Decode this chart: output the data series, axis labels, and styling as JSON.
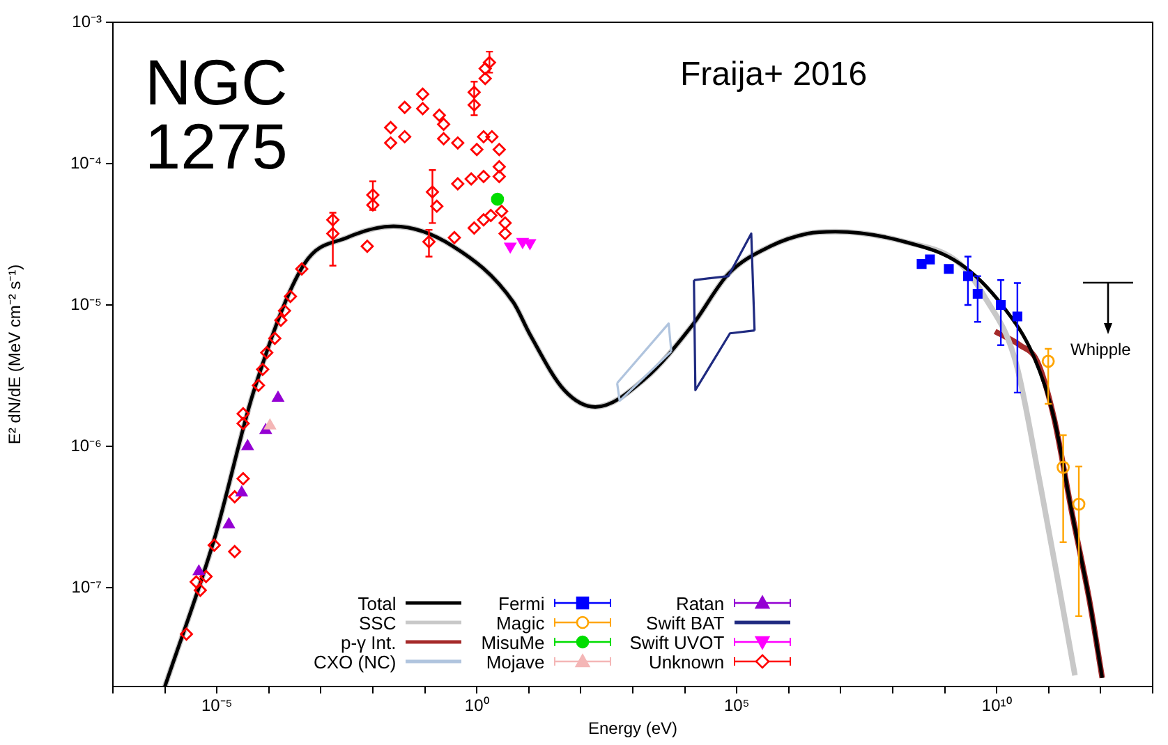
{
  "chart_data": {
    "type": "line",
    "xlabel": "Energy (eV)",
    "ylabel": "E² dN/dE (MeV cm⁻² s⁻¹)",
    "log": "xy",
    "grid": false,
    "legend": "bottom",
    "xlim": [
      1e-07,
      10000000000000.0
    ],
    "ylim": [
      2e-08,
      0.001
    ],
    "xticks": [
      {
        "value": 1e-07,
        "label": null
      },
      {
        "value": 1e-06,
        "label": null
      },
      {
        "value": 1e-05,
        "label": "10⁻⁵"
      },
      {
        "value": 0.0001,
        "label": null
      },
      {
        "value": 0.001,
        "label": null
      },
      {
        "value": 0.01,
        "label": null
      },
      {
        "value": 0.1,
        "label": null
      },
      {
        "value": 1,
        "label": "10⁰"
      },
      {
        "value": 10,
        "label": null
      },
      {
        "value": 100,
        "label": null
      },
      {
        "value": 1000,
        "label": null
      },
      {
        "value": 10000.0,
        "label": null
      },
      {
        "value": 100000.0,
        "label": "10⁵"
      },
      {
        "value": 1000000.0,
        "label": null
      },
      {
        "value": 10000000.0,
        "label": null
      },
      {
        "value": 100000000.0,
        "label": null
      },
      {
        "value": 1000000000.0,
        "label": null
      },
      {
        "value": 10000000000.0,
        "label": "10¹⁰"
      },
      {
        "value": 100000000000.0,
        "label": null
      },
      {
        "value": 1000000000000.0,
        "label": null
      },
      {
        "value": 10000000000000.0,
        "label": null
      }
    ],
    "yticks": [
      {
        "value": 1e-07,
        "label": "10⁻⁷"
      },
      {
        "value": 1e-06,
        "label": "10⁻⁶"
      },
      {
        "value": 1e-05,
        "label": "10⁻⁵"
      },
      {
        "value": 0.0001,
        "label": "10⁻⁴"
      },
      {
        "value": 0.001,
        "label": "10⁻³"
      }
    ],
    "annotations": [
      "NGC 1275",
      "Fraija+ 2016",
      "Whipple"
    ],
    "series": [
      {
        "name": "Total",
        "type": "line",
        "color": "#000000",
        "marker": "none",
        "x": [
          1e-06,
          8.9e-06,
          5.2e-05,
          0.00048,
          0.0032,
          0.025,
          0.35,
          5.0,
          10.5,
          48,
          190,
          1700,
          14000.0,
          69000.0,
          440000.0,
          2300000.0,
          7900000.0,
          170000000.0,
          2000000000.0,
          12600000000.0,
          52000000000.0,
          126000000000.0,
          275000000000.0,
          620000000000.0,
          1070000000000.0
        ],
        "values": [
          2e-08,
          2.2e-07,
          2.5e-06,
          1.95e-05,
          3e-05,
          3.6e-05,
          2.6e-05,
          1.05e-05,
          6.2e-06,
          2.5e-06,
          1.9e-06,
          3e-06,
          7.2e-06,
          1.66e-05,
          2.6e-05,
          3.2e-05,
          3.3e-05,
          2.8e-05,
          1.95e-05,
          1e-05,
          4.3e-06,
          1.6e-06,
          3.5e-07,
          7.8e-08,
          2.3e-08
        ]
      },
      {
        "name": "SSC",
        "type": "line",
        "color": "#c8c8c8",
        "marker": "none",
        "x": [
          1e-06,
          8.9e-06,
          5.2e-05,
          0.00048,
          0.0032,
          0.025,
          0.35,
          5.0,
          10.5,
          48,
          190,
          1700,
          14000.0,
          69000.0,
          440000.0,
          2300000.0,
          7900000.0,
          170000000.0,
          2000000000.0,
          5800000000.0,
          23000000000.0,
          68000000000.0,
          180000000000.0,
          320000000000.0
        ],
        "values": [
          2e-08,
          2.2e-07,
          2.5e-06,
          1.95e-05,
          3e-05,
          3.6e-05,
          2.6e-05,
          1.05e-05,
          6.2e-06,
          2.5e-06,
          1.9e-06,
          3e-06,
          7.2e-06,
          1.66e-05,
          2.6e-05,
          3.2e-05,
          3.3e-05,
          2.8e-05,
          1.95e-05,
          1.15e-05,
          4e-06,
          5.5e-07,
          7.8e-08,
          2.4e-08
        ]
      },
      {
        "name": "p-γ Int.",
        "type": "line",
        "color": "#a52a2a",
        "marker": "none",
        "x": [
          9300000000.0,
          28000000000.0,
          60000000000.0,
          126000000000.0,
          275000000000.0,
          620000000000.0,
          1070000000000.0
        ],
        "values": [
          6.5e-06,
          5.2e-06,
          4e-06,
          1.6e-06,
          3.5e-07,
          7.8e-08,
          2.3e-08
        ]
      },
      {
        "name": "CXO (NC)",
        "type": "line",
        "color": "#b0c4de",
        "marker": "none",
        "x": [
          500,
          4900,
          5500
        ],
        "values": [
          2.8e-06,
          7.4e-06,
          4.7e-06
        ]
      },
      {
        "type": "line",
        "color": "#b0c4de",
        "marker": "none",
        "x": [
          500,
          560,
          5500
        ],
        "values": [
          2.8e-06,
          2.1e-06,
          4.7e-06
        ]
      },
      {
        "name": "Fermi",
        "type": "scatter",
        "color": "#0000ff",
        "marker": "square",
        "x": [
          360000000.0,
          520000000.0,
          1200000000.0,
          2800000000.0,
          4300000000.0,
          12000000000.0,
          25000000000.0
        ],
        "values": [
          1.95e-05,
          2.1e-05,
          1.8e-05,
          1.6e-05,
          1.2e-05,
          1e-05,
          8.3e-06
        ],
        "errors": [
          null,
          null,
          null,
          [
            1e-05,
            2.2e-05
          ],
          [
            7.6e-06,
            1.6e-05
          ],
          [
            5.2e-06,
            1.5e-05
          ],
          [
            2.4e-06,
            1.43e-05
          ]
        ]
      },
      {
        "name": "Magic",
        "type": "scatter",
        "color": "#ffa500",
        "marker": "circle-open",
        "x": [
          98000000000.0,
          190000000000.0,
          380000000000.0
        ],
        "values": [
          4e-06,
          7.1e-07,
          3.9e-07
        ],
        "errors": [
          [
            2e-06,
            4.9e-06
          ],
          [
            2.1e-07,
            1.2e-06
          ],
          [
            6.3e-08,
            7.2e-07
          ]
        ]
      },
      {
        "name": "MisuMe",
        "type": "scatter",
        "color": "#00dd00",
        "marker": "circle",
        "x": [
          2.5
        ],
        "values": [
          5.6e-05
        ]
      },
      {
        "name": "Mojave",
        "type": "scatter",
        "color": "#f4b6b6",
        "marker": "triangle",
        "x": [
          0.000105
        ],
        "values": [
          1.4e-06
        ]
      },
      {
        "name": "Ratan",
        "type": "scatter",
        "color": "#9400d3",
        "marker": "triangle",
        "x": [
          0.00015,
          8.7e-05,
          3.9e-05,
          3e-05,
          1.7e-05,
          4.5e-06
        ],
        "values": [
          2.2e-06,
          1.3e-06,
          1e-06,
          4.7e-07,
          2.8e-07,
          1.3e-07
        ]
      },
      {
        "name": "Swift BAT",
        "type": "line",
        "color": "#1f2a80",
        "marker": "none",
        "x": [
          15000.0,
          69000.0,
          190000.0,
          220000.0
        ],
        "values": [
          1.5e-05,
          1.6e-05,
          3.2e-05,
          6.6e-06
        ]
      },
      {
        "type": "line",
        "color": "#1f2a80",
        "marker": "none",
        "x": [
          15000.0,
          16000.0,
          74000.0,
          220000.0
        ],
        "values": [
          1.5e-05,
          2.5e-06,
          6.3e-06,
          6.6e-06
        ]
      },
      {
        "name": "Swift UVOT",
        "type": "scatter",
        "color": "#ff00ff",
        "marker": "triangle-down",
        "x": [
          4.4,
          7.6,
          10.5
        ],
        "values": [
          2.6e-05,
          2.8e-05,
          2.75e-05
        ]
      },
      {
        "name": "Unknown",
        "type": "scatter",
        "color": "#ff0000",
        "marker": "diamond-open",
        "x": [
          2.6e-06,
          4e-06,
          4.8e-06,
          6.2e-06,
          8.9e-06,
          2.2e-05,
          2.2e-05,
          3.2e-05,
          3.2e-05,
          3.2e-05,
          6.3e-05,
          7.6e-05,
          9.1e-05,
          0.00013,
          0.00017,
          0.0002,
          0.00026,
          0.00043,
          0.0017,
          0.0017,
          0.0078,
          0.01,
          0.01,
          0.022,
          0.022,
          0.041,
          0.041,
          0.091,
          0.091,
          0.19,
          0.23,
          0.23,
          0.43,
          0.89,
          0.89,
          1.45,
          1.45,
          1.75,
          1.0,
          1.35,
          1.95,
          2.7,
          2.7,
          2.7,
          1.35,
          0.78,
          0.43,
          0.14,
          0.17,
          0.12,
          0.37,
          0.89,
          1.35,
          1.86,
          3.0,
          3.5,
          3.5
        ],
        "values": [
          4.7e-08,
          1.1e-07,
          9.6e-08,
          1.2e-07,
          2e-07,
          1.8e-07,
          4.4e-07,
          5.9e-07,
          1.45e-06,
          1.7e-06,
          2.7e-06,
          3.5e-06,
          4.6e-06,
          5.8e-06,
          7.8e-06,
          9.1e-06,
          1.15e-05,
          1.8e-05,
          3.2e-05,
          4e-05,
          2.6e-05,
          5.1e-05,
          6e-05,
          0.00014,
          0.00018,
          0.000155,
          0.00025,
          0.000245,
          0.00031,
          0.00022,
          0.00019,
          0.00015,
          0.00014,
          0.00026,
          0.00032,
          0.0004,
          0.00047,
          0.00052,
          0.000126,
          0.000155,
          0.000155,
          0.000126,
          9.5e-05,
          8.1e-05,
          8.1e-05,
          7.8e-05,
          7.2e-05,
          6.3e-05,
          5e-05,
          2.8e-05,
          3e-05,
          3.5e-05,
          4e-05,
          4.3e-05,
          4.6e-05,
          3.2e-05,
          3.8e-05
        ],
        "errors": [
          null,
          null,
          null,
          null,
          null,
          null,
          null,
          null,
          null,
          null,
          null,
          null,
          null,
          null,
          null,
          null,
          null,
          null,
          [
            1.9e-05,
            4.5e-05
          ],
          null,
          null,
          null,
          [
            4.7e-05,
            7.5e-05
          ],
          null,
          null,
          null,
          null,
          null,
          null,
          null,
          null,
          null,
          null,
          null,
          [
            0.00022,
            0.00038
          ],
          null,
          null,
          [
            0.00044,
            0.00062
          ],
          null,
          null,
          null,
          null,
          null,
          null,
          null,
          null,
          null,
          [
            3.8e-05,
            9e-05
          ],
          null,
          [
            2.2e-05,
            3.4e-05
          ],
          null,
          null,
          null,
          null,
          null,
          null,
          null
        ]
      }
    ]
  }
}
